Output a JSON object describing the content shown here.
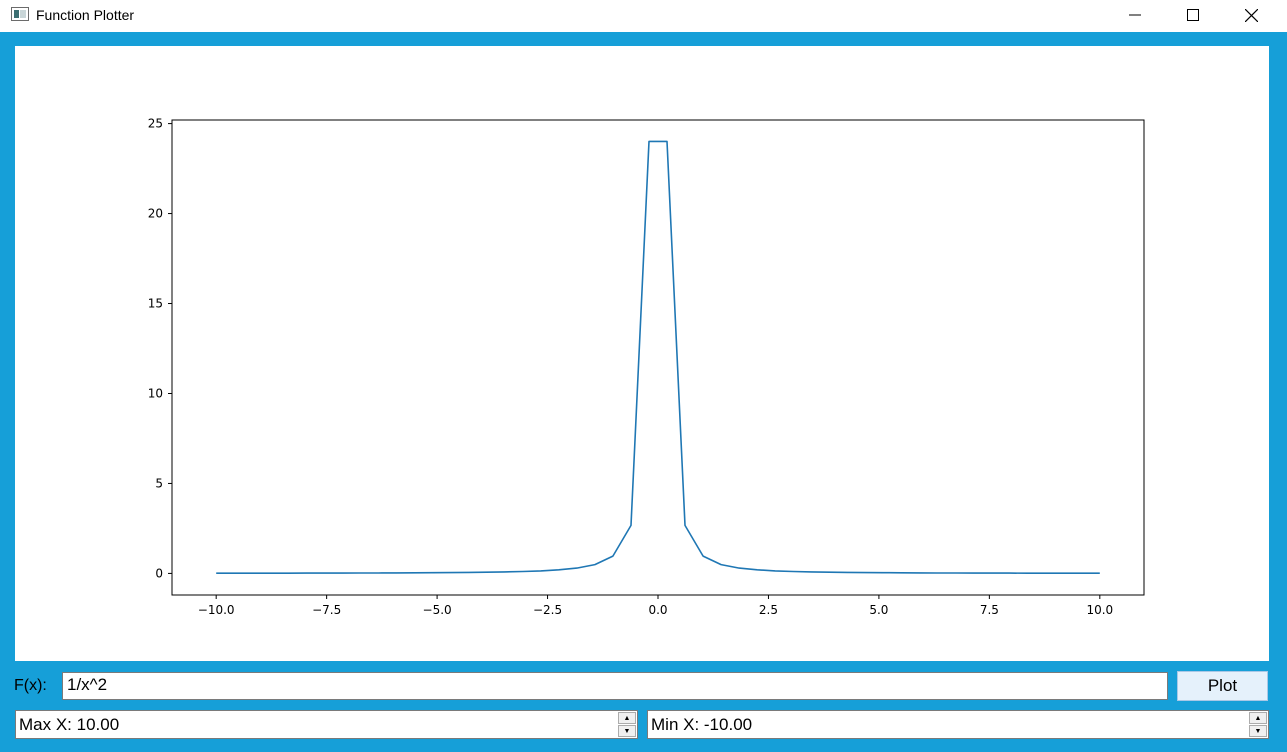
{
  "window": {
    "title": "Function Plotter",
    "minimize_icon": "minimize-icon",
    "maximize_icon": "maximize-icon",
    "close_icon": "close-icon"
  },
  "colors": {
    "frame": "#169fd8",
    "line": "#1f77b4",
    "button_bg": "#e5f1fb"
  },
  "controls": {
    "fx_label": "F(x):",
    "fx_value": "1/x^2",
    "plot_button": "Plot",
    "max_x": "Max X: 10.00",
    "min_x": "Min X: -10.00"
  },
  "chart_data": {
    "type": "line",
    "title": "",
    "xlabel": "",
    "ylabel": "",
    "xlim": [
      -11,
      11
    ],
    "ylim": [
      -1.2,
      25.2
    ],
    "xticks": [
      -10.0,
      -7.5,
      -5.0,
      -2.5,
      0.0,
      2.5,
      5.0,
      7.5,
      10.0
    ],
    "xtick_labels": [
      "−10.0",
      "−7.5",
      "−5.0",
      "−2.5",
      "0.0",
      "2.5",
      "5.0",
      "7.5",
      "10.0"
    ],
    "yticks": [
      0,
      5,
      10,
      15,
      20,
      25
    ],
    "ytick_labels": [
      "0",
      "5",
      "10",
      "15",
      "20",
      "25"
    ],
    "grid": false,
    "legend": "none",
    "series": [
      {
        "x": [
          -10.0,
          -9.592,
          -9.184,
          -8.776,
          -8.367,
          -7.959,
          -7.551,
          -7.143,
          -6.735,
          -6.327,
          -5.918,
          -5.51,
          -5.102,
          -4.694,
          -4.286,
          -3.878,
          -3.469,
          -3.061,
          -2.653,
          -2.245,
          -1.837,
          -1.429,
          -1.02,
          -0.612,
          -0.204,
          0.204,
          0.612,
          1.02,
          1.429,
          1.837,
          2.245,
          2.653,
          3.061,
          3.469,
          3.878,
          4.286,
          4.694,
          5.102,
          5.51,
          5.918,
          6.327,
          6.735,
          7.143,
          7.551,
          7.959,
          8.367,
          8.776,
          9.184,
          9.592,
          10.0
        ],
        "y": [
          0.01,
          0.0109,
          0.0119,
          0.013,
          0.0143,
          0.0158,
          0.0175,
          0.0196,
          0.022,
          0.025,
          0.0286,
          0.0329,
          0.0384,
          0.0454,
          0.0544,
          0.0665,
          0.0831,
          0.1067,
          0.1421,
          0.1984,
          0.2963,
          0.49,
          0.961,
          2.669,
          24.01,
          24.01,
          2.669,
          0.961,
          0.49,
          0.2963,
          0.1984,
          0.1421,
          0.1067,
          0.0831,
          0.0665,
          0.0544,
          0.0454,
          0.0384,
          0.0329,
          0.0286,
          0.025,
          0.022,
          0.0196,
          0.0175,
          0.0158,
          0.0143,
          0.013,
          0.0119,
          0.0109,
          0.01
        ]
      }
    ]
  }
}
